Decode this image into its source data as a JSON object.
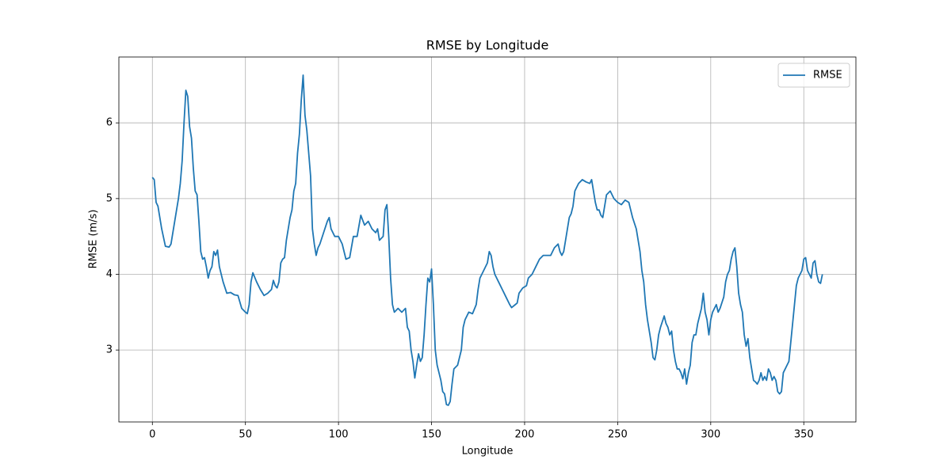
{
  "chart_data": {
    "type": "line",
    "title": "RMSE by Longitude",
    "xlabel": "Longitude",
    "ylabel": "RMSE (m/s)",
    "xlim": [
      -18,
      378
    ],
    "ylim": [
      2.05,
      6.87
    ],
    "xticks": [
      0,
      50,
      100,
      150,
      200,
      250,
      300,
      350
    ],
    "yticks": [
      3,
      4,
      5,
      6
    ],
    "grid": true,
    "legend": "upper right",
    "x": [
      0,
      1,
      2,
      3,
      5,
      7,
      9,
      10,
      12,
      14,
      15,
      16,
      17,
      18,
      19,
      20,
      21,
      22,
      23,
      24,
      25,
      26,
      27,
      28,
      29,
      30,
      31,
      32,
      33,
      34,
      35,
      36,
      37,
      38,
      40,
      42,
      44,
      46,
      48,
      50,
      51,
      52,
      53,
      54,
      56,
      58,
      60,
      62,
      64,
      65,
      66,
      67,
      68,
      69,
      70,
      71,
      72,
      73,
      74,
      75,
      76,
      77,
      78,
      79,
      80,
      81,
      82,
      83,
      84,
      85,
      86,
      87,
      88,
      89,
      90,
      92,
      94,
      95,
      96,
      98,
      100,
      102,
      104,
      106,
      108,
      110,
      112,
      114,
      116,
      118,
      120,
      121,
      122,
      124,
      125,
      126,
      127,
      128,
      129,
      130,
      132,
      134,
      136,
      137,
      138,
      139,
      140,
      141,
      142,
      143,
      144,
      145,
      146,
      147,
      148,
      149,
      150,
      151,
      152,
      153,
      154,
      155,
      156,
      157,
      158,
      159,
      160,
      161,
      162,
      164,
      166,
      167,
      168,
      170,
      172,
      174,
      175,
      176,
      178,
      180,
      181,
      182,
      183,
      184,
      186,
      188,
      190,
      192,
      193,
      195,
      196,
      197,
      199,
      201,
      202,
      204,
      206,
      208,
      210,
      212,
      214,
      216,
      218,
      219,
      220,
      221,
      222,
      223,
      224,
      225,
      226,
      227,
      229,
      231,
      233,
      235,
      236,
      237,
      238,
      239,
      240,
      241,
      242,
      243,
      244,
      246,
      248,
      250,
      252,
      254,
      256,
      257,
      258,
      260,
      261,
      262,
      263,
      264,
      265,
      266,
      268,
      269,
      270,
      271,
      272,
      273,
      275,
      276,
      277,
      278,
      279,
      280,
      281,
      282,
      283,
      284,
      285,
      286,
      287,
      288,
      289,
      290,
      291,
      292,
      293,
      294,
      295,
      296,
      297,
      298,
      299,
      300,
      301,
      302,
      303,
      304,
      305,
      307,
      308,
      309,
      310,
      311,
      312,
      313,
      314,
      315,
      316,
      317,
      318,
      319,
      320,
      321,
      322,
      323,
      324,
      325,
      326,
      327,
      328,
      329,
      330,
      331,
      332,
      333,
      334,
      335,
      336,
      337,
      338,
      339,
      340,
      341,
      342,
      343,
      344,
      345,
      346,
      347,
      348,
      349,
      350,
      351,
      352,
      353,
      354,
      355,
      356,
      357,
      358,
      359,
      360
    ],
    "series": [
      {
        "name": "RMSE",
        "color": "#1f77b4",
        "values": [
          5.28,
          5.25,
          4.95,
          4.9,
          4.6,
          4.37,
          4.36,
          4.4,
          4.7,
          5.0,
          5.2,
          5.5,
          6.0,
          6.43,
          6.35,
          5.95,
          5.8,
          5.4,
          5.1,
          5.05,
          4.7,
          4.3,
          4.2,
          4.22,
          4.1,
          3.95,
          4.05,
          4.1,
          4.3,
          4.25,
          4.32,
          4.1,
          4.0,
          3.9,
          3.75,
          3.76,
          3.73,
          3.72,
          3.55,
          3.5,
          3.48,
          3.6,
          3.9,
          4.02,
          3.9,
          3.8,
          3.72,
          3.75,
          3.8,
          3.92,
          3.85,
          3.82,
          3.9,
          4.15,
          4.2,
          4.22,
          4.45,
          4.6,
          4.75,
          4.85,
          5.1,
          5.2,
          5.6,
          5.85,
          6.3,
          6.63,
          6.1,
          5.9,
          5.6,
          5.3,
          4.6,
          4.4,
          4.25,
          4.35,
          4.4,
          4.55,
          4.7,
          4.75,
          4.6,
          4.5,
          4.5,
          4.4,
          4.2,
          4.22,
          4.5,
          4.5,
          4.78,
          4.65,
          4.7,
          4.6,
          4.55,
          4.6,
          4.45,
          4.5,
          4.85,
          4.92,
          4.5,
          3.95,
          3.6,
          3.5,
          3.55,
          3.5,
          3.55,
          3.3,
          3.25,
          3.0,
          2.85,
          2.63,
          2.8,
          2.95,
          2.85,
          2.9,
          3.2,
          3.6,
          3.95,
          3.9,
          4.07,
          3.6,
          3.0,
          2.8,
          2.7,
          2.6,
          2.45,
          2.42,
          2.28,
          2.27,
          2.32,
          2.55,
          2.75,
          2.8,
          3.0,
          3.3,
          3.4,
          3.5,
          3.48,
          3.6,
          3.8,
          3.95,
          4.05,
          4.15,
          4.3,
          4.25,
          4.1,
          4.0,
          3.9,
          3.8,
          3.7,
          3.6,
          3.56,
          3.6,
          3.62,
          3.75,
          3.82,
          3.85,
          3.95,
          4.0,
          4.1,
          4.2,
          4.25,
          4.25,
          4.25,
          4.35,
          4.4,
          4.3,
          4.25,
          4.3,
          4.45,
          4.6,
          4.75,
          4.8,
          4.9,
          5.1,
          5.2,
          5.25,
          5.22,
          5.2,
          5.25,
          5.1,
          4.95,
          4.85,
          4.85,
          4.78,
          4.75,
          4.9,
          5.05,
          5.1,
          5.0,
          4.95,
          4.92,
          4.98,
          4.95,
          4.85,
          4.75,
          4.6,
          4.45,
          4.3,
          4.05,
          3.9,
          3.6,
          3.4,
          3.1,
          2.9,
          2.87,
          3.0,
          3.2,
          3.3,
          3.45,
          3.35,
          3.3,
          3.2,
          3.25,
          3.0,
          2.85,
          2.75,
          2.75,
          2.7,
          2.62,
          2.75,
          2.55,
          2.7,
          2.8,
          3.1,
          3.2,
          3.2,
          3.35,
          3.45,
          3.55,
          3.75,
          3.5,
          3.4,
          3.2,
          3.4,
          3.5,
          3.55,
          3.6,
          3.5,
          3.55,
          3.7,
          3.9,
          4.0,
          4.05,
          4.2,
          4.3,
          4.35,
          4.1,
          3.75,
          3.6,
          3.5,
          3.2,
          3.05,
          3.15,
          2.9,
          2.75,
          2.6,
          2.58,
          2.55,
          2.6,
          2.7,
          2.6,
          2.65,
          2.6,
          2.75,
          2.7,
          2.6,
          2.65,
          2.6,
          2.45,
          2.42,
          2.45,
          2.7,
          2.75,
          2.8,
          2.85,
          3.1,
          3.35,
          3.6,
          3.85,
          3.95,
          4.0,
          4.05,
          4.2,
          4.22,
          4.05,
          4.0,
          3.95,
          4.15,
          4.18,
          4.0,
          3.9,
          3.88,
          4.0
        ]
      }
    ]
  }
}
